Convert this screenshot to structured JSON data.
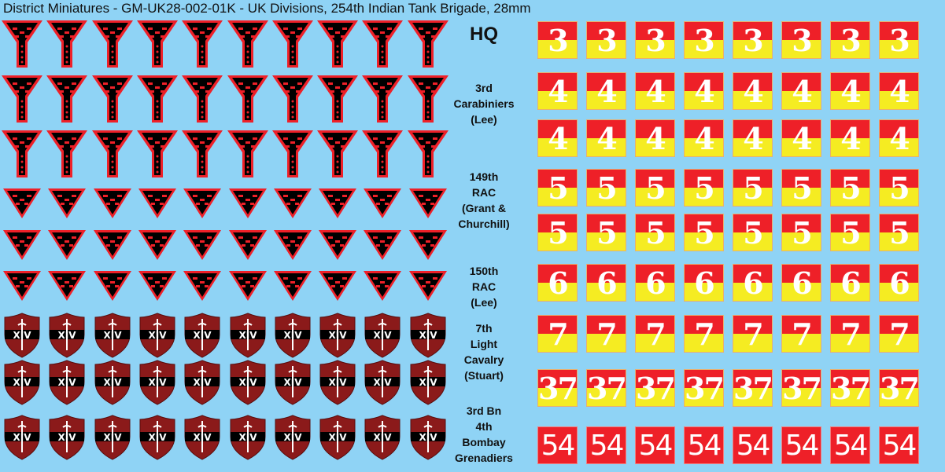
{
  "title": "District Miniatures - GM-UK28-002-01K - UK Divisions, 254th Indian Tank Brigade, 28mm",
  "colors": {
    "background": "#8fd3f5",
    "red": "#ee2028",
    "yellow": "#f5ec22",
    "shield": "#8b1a1a",
    "black": "#000000"
  },
  "insignia_rows": [
    {
      "type": "funnel",
      "count": 10
    },
    {
      "type": "funnel",
      "count": 10
    },
    {
      "type": "funnel",
      "count": 10
    },
    {
      "type": "triangle",
      "count": 10
    },
    {
      "type": "triangle",
      "count": 10
    },
    {
      "type": "triangle",
      "count": 10
    },
    {
      "type": "shield",
      "count": 10,
      "text": "XIV"
    },
    {
      "type": "shield",
      "count": 10,
      "text": "XIV"
    },
    {
      "type": "shield",
      "count": 10,
      "text": "XIV"
    }
  ],
  "units": [
    {
      "label": "HQ",
      "rows": [
        {
          "number": "3",
          "style": "red-yellow"
        }
      ]
    },
    {
      "label": "3rd\nCarabiniers\n(Lee)",
      "rows": [
        {
          "number": "4",
          "style": "red-yellow"
        },
        {
          "number": "4",
          "style": "red-yellow"
        }
      ]
    },
    {
      "label": "149th\nRAC\n(Grant &\nChurchill)",
      "rows": [
        {
          "number": "5",
          "style": "red-yellow"
        },
        {
          "number": "5",
          "style": "red-yellow"
        }
      ]
    },
    {
      "label": "150th\nRAC\n(Lee)",
      "rows": [
        {
          "number": "6",
          "style": "red-yellow"
        }
      ]
    },
    {
      "label": "7th\nLight\nCavalry\n(Stuart)",
      "rows": [
        {
          "number": "7",
          "style": "red-yellow"
        },
        {
          "number": "37",
          "style": "red-yellow"
        }
      ]
    },
    {
      "label": "3rd Bn\n4th\nBombay\nGrenadiers",
      "rows": [
        {
          "number": "54",
          "style": "red"
        }
      ]
    }
  ],
  "tiles_per_row": 8
}
